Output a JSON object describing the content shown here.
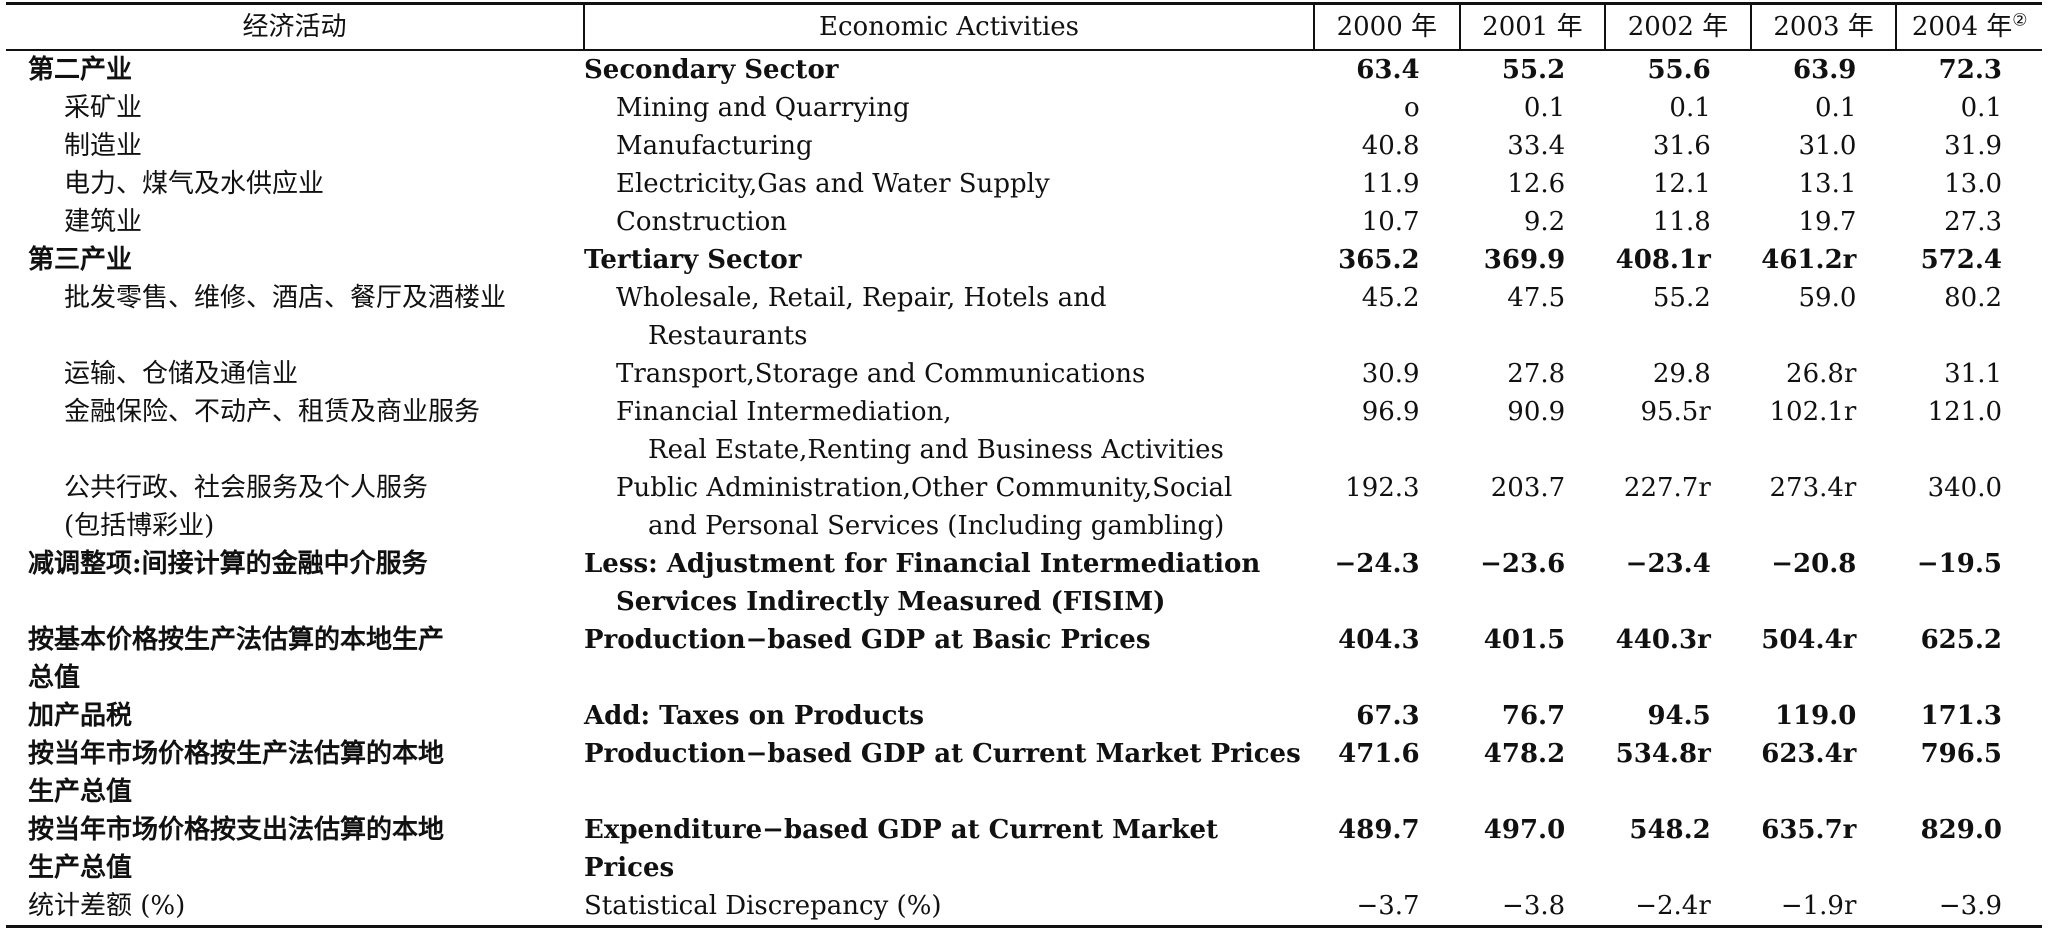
{
  "header": {
    "col_zh": "经济活动",
    "col_en": "Economic Activities",
    "years": [
      "2000 年",
      "2001 年",
      "2002 年",
      "2003 年",
      "2004 年"
    ],
    "note_mark": "②"
  },
  "rows": [
    {
      "zh": [
        "第二产业"
      ],
      "en": [
        "Secondary Sector"
      ],
      "values": [
        "63.4",
        "55.2",
        "55.6",
        "63.9",
        "72.3"
      ]
    },
    {
      "zh": [
        "采矿业"
      ],
      "en": [
        "Mining and Quarrying"
      ],
      "values": [
        "o",
        "0.1",
        "0.1",
        "0.1",
        "0.1"
      ]
    },
    {
      "zh": [
        "制造业"
      ],
      "en": [
        "Manufacturing"
      ],
      "values": [
        "40.8",
        "33.4",
        "31.6",
        "31.0",
        "31.9"
      ]
    },
    {
      "zh": [
        "电力、煤气及水供应业"
      ],
      "en": [
        "Electricity,Gas and Water Supply"
      ],
      "values": [
        "11.9",
        "12.6",
        "12.1",
        "13.1",
        "13.0"
      ]
    },
    {
      "zh": [
        "建筑业"
      ],
      "en": [
        "Construction"
      ],
      "values": [
        "10.7",
        "9.2",
        "11.8",
        "19.7",
        "27.3"
      ]
    },
    {
      "zh": [
        "第三产业"
      ],
      "en": [
        "Tertiary Sector"
      ],
      "values": [
        "365.2",
        "369.9",
        "408.1r",
        "461.2r",
        "572.4"
      ]
    },
    {
      "zh": [
        "批发零售、维修、酒店、餐厅及酒楼业"
      ],
      "en": [
        "Wholesale, Retail, Repair, Hotels and",
        "Restaurants"
      ],
      "values": [
        "45.2",
        "47.5",
        "55.2",
        "59.0",
        "80.2"
      ]
    },
    {
      "zh": [
        "运输、仓储及通信业"
      ],
      "en": [
        "Transport,Storage and Communications"
      ],
      "values": [
        "30.9",
        "27.8",
        "29.8",
        "26.8r",
        "31.1"
      ]
    },
    {
      "zh": [
        "金融保险、不动产、租赁及商业服务"
      ],
      "en": [
        "Financial Intermediation,",
        "Real Estate,Renting and Business Activities"
      ],
      "values": [
        "96.9",
        "90.9",
        "95.5r",
        "102.1r",
        "121.0"
      ]
    },
    {
      "zh": [
        "公共行政、社会服务及个人服务",
        "(包括博彩业)"
      ],
      "en": [
        "Public Administration,Other Community,Social",
        "and Personal Services (Including gambling)"
      ],
      "values": [
        "192.3",
        "203.7",
        "227.7r",
        "273.4r",
        "340.0"
      ]
    },
    {
      "zh": [
        "减调整项:间接计算的金融中介服务"
      ],
      "en": [
        "Less: Adjustment for Financial Intermediation",
        "Services Indirectly Measured (FISIM)"
      ],
      "values": [
        "−24.3",
        "−23.6",
        "−23.4",
        "−20.8",
        "−19.5"
      ]
    },
    {
      "zh": [
        "按基本价格按生产法估算的本地生产",
        "总值"
      ],
      "en": [
        "Production−based GDP at Basic Prices"
      ],
      "values": [
        "404.3",
        "401.5",
        "440.3r",
        "504.4r",
        "625.2"
      ]
    },
    {
      "zh": [
        "加产品税"
      ],
      "en": [
        "Add: Taxes on Products"
      ],
      "values": [
        "67.3",
        "76.7",
        "94.5",
        "119.0",
        "171.3"
      ]
    },
    {
      "zh": [
        "按当年市场价格按生产法估算的本地",
        "生产总值"
      ],
      "en": [
        "Production−based GDP at Current Market Prices"
      ],
      "values": [
        "471.6",
        "478.2",
        "534.8r",
        "623.4r",
        "796.5"
      ]
    },
    {
      "zh": [
        "按当年市场价格按支出法估算的本地",
        "生产总值"
      ],
      "en": [
        "Expenditure−based GDP at Current Market",
        "Prices"
      ],
      "values": [
        "489.7",
        "497.0",
        "548.2",
        "635.7r",
        "829.0"
      ]
    },
    {
      "zh": [
        "统计差额 (%)"
      ],
      "en": [
        "Statistical Discrepancy (%)"
      ],
      "values": [
        "−3.7",
        "−3.8",
        "−2.4r",
        "−1.9r",
        "−3.9"
      ]
    }
  ]
}
